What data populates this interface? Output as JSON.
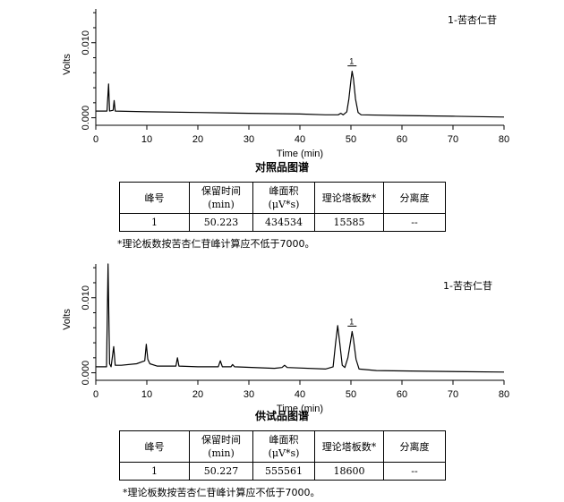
{
  "chart_data": [
    {
      "type": "line",
      "title": "对照品图谱",
      "xlabel": "Time (min)",
      "ylabel": "Volts",
      "xlim": [
        0,
        80
      ],
      "ylim": [
        -0.001,
        0.0145
      ],
      "x_ticks": [
        0,
        10,
        20,
        30,
        40,
        50,
        60,
        70,
        80
      ],
      "y_ticks": [
        0.0,
        0.01
      ],
      "y_tick_labels": [
        "0.000",
        "0.010"
      ],
      "grid": false,
      "legend": "top-right",
      "series": [
        {
          "name": "1-苦杏仁苷",
          "points": [
            [
              0,
              0.0009
            ],
            [
              2.2,
              0.0009
            ],
            [
              2.5,
              0.0045
            ],
            [
              2.7,
              0.0009
            ],
            [
              3.4,
              0.001
            ],
            [
              3.6,
              0.0023
            ],
            [
              3.8,
              0.0009
            ],
            [
              10,
              0.0008
            ],
            [
              20,
              0.0007
            ],
            [
              30,
              0.0006
            ],
            [
              40,
              0.0005
            ],
            [
              45,
              0.0004
            ],
            [
              47.5,
              0.0004
            ],
            [
              48,
              0.0006
            ],
            [
              48.5,
              0.0004
            ],
            [
              49.2,
              0.0008
            ],
            [
              49.6,
              0.0025
            ],
            [
              50.0,
              0.005
            ],
            [
              50.22,
              0.0062
            ],
            [
              50.5,
              0.0052
            ],
            [
              50.9,
              0.0025
            ],
            [
              51.4,
              0.0007
            ],
            [
              52,
              0.0004
            ],
            [
              60,
              0.0003
            ],
            [
              70,
              0.0002
            ],
            [
              80,
              0.0001
            ]
          ]
        }
      ],
      "annotations": [
        {
          "x": 50.22,
          "label": "1"
        }
      ]
    },
    {
      "type": "line",
      "title": "供试品图谱",
      "xlabel": "Time (min)",
      "ylabel": "Volts",
      "xlim": [
        0,
        80
      ],
      "ylim": [
        -0.001,
        0.0145
      ],
      "x_ticks": [
        0,
        10,
        20,
        30,
        40,
        50,
        60,
        70,
        80
      ],
      "y_ticks": [
        0.0,
        0.01
      ],
      "y_tick_labels": [
        "0.000",
        "0.010"
      ],
      "grid": false,
      "legend": "top-right",
      "series": [
        {
          "name": "1-苦杏仁苷",
          "points": [
            [
              0,
              0.0008
            ],
            [
              2.1,
              0.0008
            ],
            [
              2.4,
              0.0145
            ],
            [
              2.7,
              0.0012
            ],
            [
              3.0,
              0.0008
            ],
            [
              3.5,
              0.0035
            ],
            [
              3.8,
              0.001
            ],
            [
              5,
              0.001
            ],
            [
              8,
              0.0012
            ],
            [
              9.6,
              0.0016
            ],
            [
              9.9,
              0.0038
            ],
            [
              10.2,
              0.0018
            ],
            [
              10.6,
              0.0012
            ],
            [
              12,
              0.0009
            ],
            [
              15.7,
              0.0009
            ],
            [
              16.0,
              0.002
            ],
            [
              16.3,
              0.0009
            ],
            [
              20,
              0.0008
            ],
            [
              24.0,
              0.0008
            ],
            [
              24.4,
              0.0016
            ],
            [
              24.8,
              0.0008
            ],
            [
              26.5,
              0.0008
            ],
            [
              26.8,
              0.0011
            ],
            [
              27.2,
              0.0008
            ],
            [
              35,
              0.0006
            ],
            [
              36.5,
              0.0007
            ],
            [
              37,
              0.001
            ],
            [
              37.5,
              0.0007
            ],
            [
              45,
              0.0005
            ],
            [
              46.5,
              0.0008
            ],
            [
              47.0,
              0.004
            ],
            [
              47.4,
              0.0063
            ],
            [
              47.8,
              0.004
            ],
            [
              48.3,
              0.001
            ],
            [
              48.8,
              0.0007
            ],
            [
              49.4,
              0.002
            ],
            [
              50.0,
              0.0045
            ],
            [
              50.23,
              0.0055
            ],
            [
              50.5,
              0.0045
            ],
            [
              51.0,
              0.0018
            ],
            [
              51.6,
              0.0005
            ],
            [
              55,
              0.0003
            ],
            [
              65,
              0.0002
            ],
            [
              80,
              0.0001
            ]
          ]
        }
      ],
      "annotations": [
        {
          "x": 50.23,
          "label": "1"
        }
      ]
    }
  ],
  "page": {
    "chart1": {
      "y_axis_title": "Volts",
      "x_axis_title": "Time (min)",
      "legend_text": "1-苦杏仁苷",
      "peak_label": "1"
    },
    "caption1": "对照品图谱",
    "table1": {
      "headers": [
        [
          "峰号"
        ],
        [
          "保留时间",
          "(min)"
        ],
        [
          "峰面积",
          "(μV*s)"
        ],
        [
          "理论塔板数*"
        ],
        [
          "分离度"
        ]
      ],
      "row": [
        "1",
        "50.223",
        "434534",
        "15585",
        "--"
      ]
    },
    "note1": "*理论板数按苦杏仁苷峰计算应不低于7000。",
    "chart2": {
      "y_axis_title": "Volts",
      "x_axis_title": "Time (min)",
      "legend_text": "1-苦杏仁苷",
      "peak_label": "1"
    },
    "caption2": "供试品图谱",
    "table2": {
      "headers": [
        [
          "峰号"
        ],
        [
          "保留时间",
          "(min)"
        ],
        [
          "峰面积",
          "(μV*s)"
        ],
        [
          "理论塔板数*"
        ],
        [
          "分离度"
        ]
      ],
      "row": [
        "1",
        "50.227",
        "555561",
        "18600",
        "--"
      ]
    },
    "note2": "*理论板数按苦杏仁苷峰计算应不低于7000。"
  }
}
